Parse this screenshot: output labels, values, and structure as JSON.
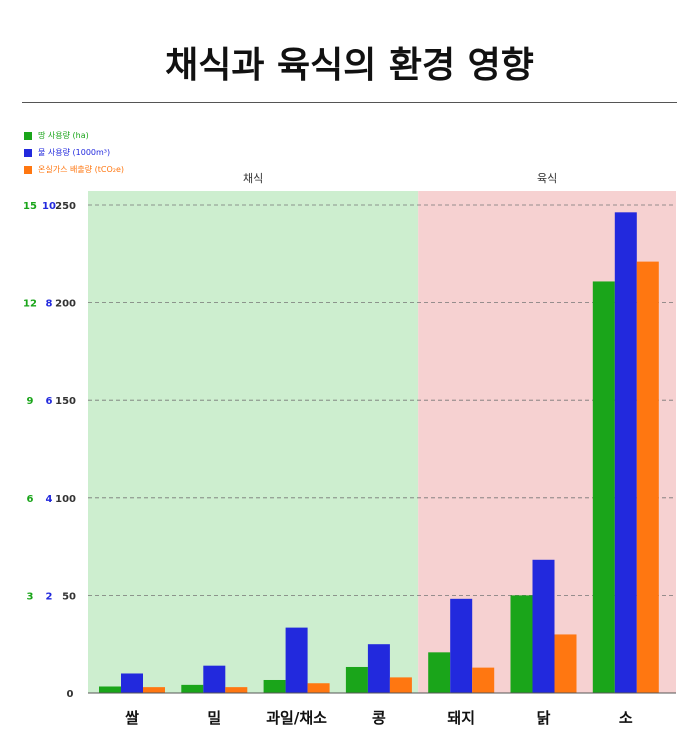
{
  "page": {
    "title": "채식과 육식의 환경 영향"
  },
  "chart_data": {
    "type": "bar",
    "title": "채식과 육식의 환경 영향",
    "categories": [
      "쌀",
      "밀",
      "과일/채소",
      "콩",
      "돼지",
      "닭",
      "소"
    ],
    "groups": [
      {
        "label": "채식",
        "start": 0,
        "end": 3,
        "color": "#cdeecf"
      },
      {
        "label": "육식",
        "start": 4,
        "end": 6,
        "color": "#f6d1d1"
      }
    ],
    "series": [
      {
        "name": "땅 사용량 (ha)",
        "color": "#1aa51a",
        "axis": "land",
        "values": [
          0.2,
          0.25,
          0.4,
          0.8,
          1.25,
          3.0,
          12.65
        ]
      },
      {
        "name": "물 사용량 (1000m³)",
        "color": "#2229dd",
        "axis": "water",
        "values": [
          0.4,
          0.56,
          1.34,
          1.0,
          1.93,
          2.73,
          9.85
        ]
      },
      {
        "name": "온실가스 배출량 (tCO₂e)",
        "color": "#ff7711",
        "axis": "ghg",
        "values": [
          3,
          3,
          5,
          8,
          13,
          30,
          221
        ]
      }
    ],
    "axes": {
      "land": {
        "min": 0,
        "max": 15,
        "ticks": [
          "",
          "3",
          "6",
          "9",
          "12",
          "15"
        ],
        "color": "#1aa51a"
      },
      "water": {
        "min": 0,
        "max": 10,
        "ticks": [
          "",
          "2",
          "4",
          "6",
          "8",
          "10"
        ],
        "color": "#2229dd"
      },
      "ghg": {
        "min": 0,
        "max": 250,
        "ticks": [
          "0",
          "50",
          "100",
          "150",
          "200",
          "250"
        ],
        "color": "#333333"
      }
    },
    "grid": true,
    "legend_position": "top-left"
  }
}
